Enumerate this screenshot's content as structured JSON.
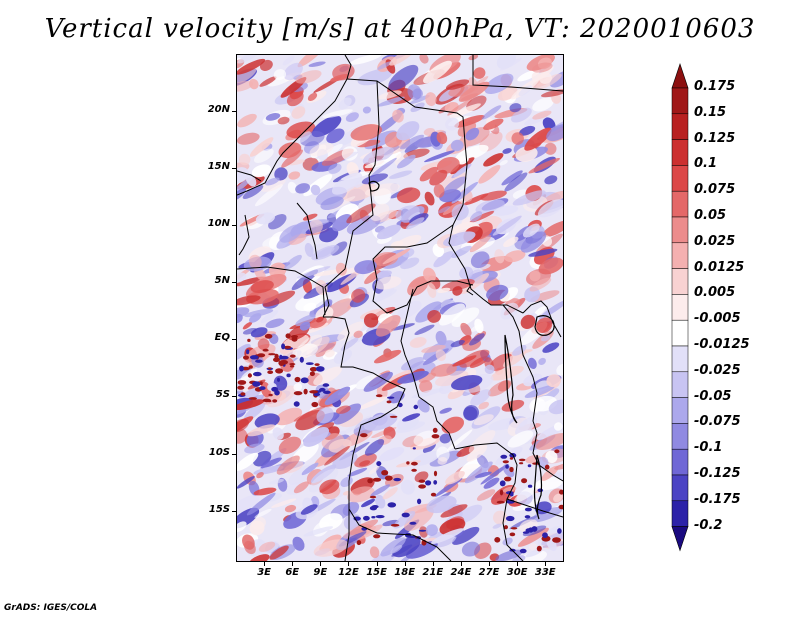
{
  "title": "Vertical velocity [m/s] at 400hPa, VT: 2020010603",
  "credit": "GrADS: IGES/COLA",
  "map": {
    "lat_labels": [
      "20N",
      "15N",
      "10N",
      "5N",
      "EQ",
      "5S",
      "10S",
      "15S"
    ],
    "lat_values": [
      20,
      15,
      10,
      5,
      0,
      -5,
      -10,
      -15
    ],
    "lon_labels": [
      "3E",
      "6E",
      "9E",
      "12E",
      "15E",
      "18E",
      "21E",
      "24E",
      "27E",
      "30E",
      "33E"
    ],
    "lon_values": [
      3,
      6,
      9,
      12,
      15,
      18,
      21,
      24,
      27,
      30,
      33
    ],
    "lat_range": [
      -19.5,
      25
    ],
    "lon_range": [
      0,
      35
    ]
  },
  "colorbar": {
    "labels": [
      "0.175",
      "0.15",
      "0.125",
      "0.1",
      "0.075",
      "0.05",
      "0.025",
      "0.0125",
      "0.005",
      "-0.005",
      "-0.0125",
      "-0.025",
      "-0.05",
      "-0.075",
      "-0.1",
      "-0.125",
      "-0.175",
      "-0.2"
    ],
    "colors": [
      "#a01818",
      "#b82020",
      "#cc3030",
      "#dc4848",
      "#e46868",
      "#ec8c8c",
      "#f4b0b0",
      "#f8d2d2",
      "#fcecec",
      "#ffffff",
      "#e2e0f8",
      "#c8c4f2",
      "#aca8ec",
      "#908ae2",
      "#7068d6",
      "#4c44c4",
      "#2c22a8",
      "#180c88"
    ],
    "top_arrow_color": "#8c1010",
    "bottom_arrow_color": "#1a0a80"
  }
}
